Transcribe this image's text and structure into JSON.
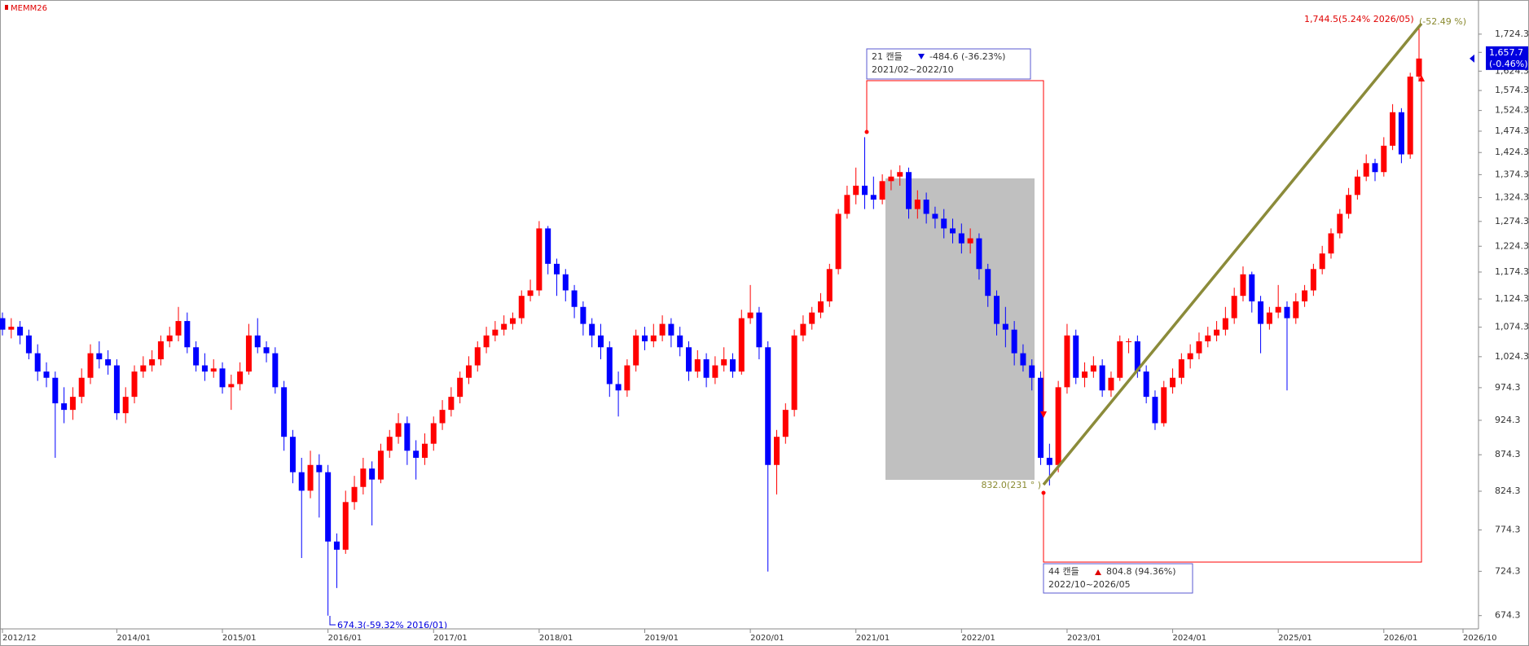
{
  "chart_data": {
    "type": "candlestick",
    "title": "MEMM26",
    "x": [
      "2012/12",
      "2013/01",
      "2013/02",
      "2013/03",
      "2013/04",
      "2013/05",
      "2013/06",
      "2013/07",
      "2013/08",
      "2013/09",
      "2013/10",
      "2013/11",
      "2013/12",
      "2014/01",
      "2014/02",
      "2014/03",
      "2014/04",
      "2014/05",
      "2014/06",
      "2014/07",
      "2014/08",
      "2014/09",
      "2014/10",
      "2014/11",
      "2014/12",
      "2015/01",
      "2015/02",
      "2015/03",
      "2015/04",
      "2015/05",
      "2015/06",
      "2015/07",
      "2015/08",
      "2015/09",
      "2015/10",
      "2015/11",
      "2015/12",
      "2016/01",
      "2016/02",
      "2016/03",
      "2016/04",
      "2016/05",
      "2016/06",
      "2016/07",
      "2016/08",
      "2016/09",
      "2016/10",
      "2016/11",
      "2016/12",
      "2017/01",
      "2017/02",
      "2017/03",
      "2017/04",
      "2017/05",
      "2017/06",
      "2017/07",
      "2017/08",
      "2017/09",
      "2017/10",
      "2017/11",
      "2017/12",
      "2018/01",
      "2018/02",
      "2018/03",
      "2018/04",
      "2018/05",
      "2018/06",
      "2018/07",
      "2018/08",
      "2018/09",
      "2018/10",
      "2018/11",
      "2018/12",
      "2019/01",
      "2019/02",
      "2019/03",
      "2019/04",
      "2019/05",
      "2019/06",
      "2019/07",
      "2019/08",
      "2019/09",
      "2019/10",
      "2019/11",
      "2019/12",
      "2020/01",
      "2020/02",
      "2020/03",
      "2020/04",
      "2020/05",
      "2020/06",
      "2020/07",
      "2020/08",
      "2020/09",
      "2020/10",
      "2020/11",
      "2020/12",
      "2021/01",
      "2021/02",
      "2021/03",
      "2021/04",
      "2021/05",
      "2021/06",
      "2021/07",
      "2021/08",
      "2021/09",
      "2021/10",
      "2021/11",
      "2021/12",
      "2022/01",
      "2022/02",
      "2022/03",
      "2022/04",
      "2022/05",
      "2022/06",
      "2022/07",
      "2022/08",
      "2022/09",
      "2022/10",
      "2022/11",
      "2022/12",
      "2023/01",
      "2023/02",
      "2023/03",
      "2023/04",
      "2023/05",
      "2023/06",
      "2023/07",
      "2023/08",
      "2023/09",
      "2023/10",
      "2023/11",
      "2023/12",
      "2024/01",
      "2024/02",
      "2024/03",
      "2024/04",
      "2024/05",
      "2024/06",
      "2024/07",
      "2024/08",
      "2024/09",
      "2024/10",
      "2024/11",
      "2024/12",
      "2025/01",
      "2025/02",
      "2025/03",
      "2025/04",
      "2025/05",
      "2025/06",
      "2025/07",
      "2025/08",
      "2025/09",
      "2025/10",
      "2025/11",
      "2025/12",
      "2026/01",
      "2026/02",
      "2026/03",
      "2026/04",
      "2026/05"
    ],
    "series": {
      "open": [
        1090,
        1070,
        1075,
        1060,
        1030,
        1000,
        990,
        950,
        940,
        960,
        990,
        1030,
        1020,
        1010,
        935,
        960,
        1000,
        1010,
        1020,
        1050,
        1060,
        1085,
        1040,
        1010,
        1000,
        1005,
        975,
        980,
        1000,
        1060,
        1040,
        1030,
        975,
        900,
        850,
        825,
        860,
        850,
        760,
        750,
        810,
        830,
        855,
        840,
        880,
        900,
        920,
        880,
        870,
        890,
        920,
        940,
        960,
        990,
        1010,
        1040,
        1060,
        1070,
        1080,
        1090,
        1130,
        1140,
        1260,
        1190,
        1170,
        1140,
        1110,
        1080,
        1060,
        1040,
        980,
        970,
        1010,
        1060,
        1050,
        1060,
        1080,
        1060,
        1040,
        1000,
        1020,
        990,
        1010,
        1020,
        1000,
        1090,
        1100,
        1040,
        860,
        900,
        940,
        1060,
        1080,
        1100,
        1120,
        1180,
        1290,
        1330,
        1350,
        1330,
        1320,
        1360,
        1370,
        1380,
        1300,
        1320,
        1290,
        1280,
        1260,
        1250,
        1230,
        1240,
        1180,
        1130,
        1080,
        1070,
        1030,
        1010,
        990,
        870,
        860,
        975,
        1060,
        990,
        1000,
        1010,
        970,
        990,
        1050,
        1050,
        1000,
        960,
        920,
        975,
        990,
        1020,
        1030,
        1050,
        1060,
        1070,
        1090,
        1130,
        1170,
        1120,
        1080,
        1100,
        1110,
        1090,
        1120,
        1140,
        1180,
        1210,
        1250,
        1290,
        1330,
        1370,
        1400,
        1380,
        1440,
        1520,
        1420,
        1610
      ],
      "high": [
        1100,
        1090,
        1085,
        1070,
        1045,
        1015,
        1000,
        975,
        975,
        1005,
        1045,
        1050,
        1035,
        1020,
        975,
        1010,
        1025,
        1035,
        1060,
        1075,
        1110,
        1100,
        1050,
        1030,
        1020,
        1015,
        995,
        1015,
        1080,
        1090,
        1050,
        1040,
        985,
        910,
        870,
        880,
        875,
        860,
        770,
        825,
        845,
        870,
        865,
        890,
        910,
        935,
        930,
        895,
        905,
        930,
        955,
        975,
        1000,
        1025,
        1050,
        1075,
        1085,
        1095,
        1100,
        1140,
        1160,
        1275,
        1265,
        1200,
        1180,
        1150,
        1120,
        1090,
        1080,
        1050,
        1000,
        1020,
        1070,
        1075,
        1080,
        1095,
        1090,
        1075,
        1050,
        1035,
        1030,
        1025,
        1040,
        1030,
        1105,
        1150,
        1110,
        1050,
        910,
        950,
        1070,
        1095,
        1110,
        1135,
        1190,
        1300,
        1350,
        1390,
        1460,
        1370,
        1375,
        1385,
        1395,
        1390,
        1340,
        1335,
        1305,
        1300,
        1280,
        1270,
        1260,
        1250,
        1190,
        1140,
        1110,
        1085,
        1045,
        1020,
        1000,
        890,
        985,
        1080,
        1070,
        1015,
        1025,
        1020,
        1000,
        1060,
        1055,
        1060,
        1010,
        970,
        985,
        1005,
        1030,
        1045,
        1065,
        1075,
        1085,
        1110,
        1145,
        1185,
        1175,
        1130,
        1110,
        1150,
        1120,
        1135,
        1150,
        1190,
        1225,
        1260,
        1300,
        1345,
        1385,
        1420,
        1410,
        1460,
        1540,
        1530,
        1620,
        1744.5
      ],
      "low": [
        1060,
        1055,
        1045,
        1020,
        985,
        975,
        870,
        920,
        925,
        950,
        980,
        1005,
        995,
        925,
        920,
        950,
        990,
        1000,
        1010,
        1040,
        1050,
        1030,
        1000,
        985,
        990,
        965,
        940,
        970,
        995,
        1030,
        1015,
        965,
        880,
        835,
        740,
        815,
        790,
        674.3,
        705,
        745,
        800,
        820,
        780,
        835,
        870,
        890,
        860,
        840,
        860,
        880,
        910,
        930,
        950,
        980,
        1000,
        1030,
        1050,
        1060,
        1070,
        1080,
        1120,
        1130,
        1170,
        1130,
        1120,
        1090,
        1060,
        1040,
        1020,
        960,
        930,
        960,
        1000,
        1035,
        1040,
        1050,
        1040,
        1025,
        985,
        990,
        975,
        980,
        1000,
        990,
        995,
        1080,
        1020,
        724,
        820,
        890,
        930,
        1050,
        1070,
        1090,
        1110,
        1170,
        1280,
        1310,
        1300,
        1300,
        1310,
        1340,
        1350,
        1280,
        1280,
        1270,
        1260,
        1240,
        1230,
        1210,
        1210,
        1160,
        1110,
        1060,
        1040,
        1010,
        1000,
        970,
        860,
        832,
        850,
        965,
        980,
        975,
        990,
        960,
        960,
        985,
        1030,
        990,
        950,
        910,
        915,
        965,
        980,
        1005,
        1020,
        1040,
        1050,
        1060,
        1080,
        1120,
        1100,
        1030,
        1070,
        1090,
        970,
        1080,
        1110,
        1130,
        1170,
        1200,
        1240,
        1280,
        1320,
        1360,
        1360,
        1370,
        1430,
        1400,
        1410,
        1600
      ],
      "close": [
        1070,
        1075,
        1060,
        1030,
        1000,
        990,
        950,
        940,
        960,
        990,
        1030,
        1020,
        1010,
        935,
        960,
        1000,
        1010,
        1020,
        1050,
        1060,
        1085,
        1040,
        1010,
        1000,
        1005,
        975,
        980,
        1000,
        1060,
        1040,
        1030,
        975,
        900,
        850,
        825,
        860,
        850,
        760,
        750,
        810,
        830,
        855,
        840,
        880,
        900,
        920,
        880,
        870,
        890,
        920,
        940,
        960,
        990,
        1010,
        1040,
        1060,
        1070,
        1080,
        1090,
        1130,
        1140,
        1260,
        1190,
        1170,
        1140,
        1110,
        1080,
        1060,
        1040,
        980,
        970,
        1010,
        1060,
        1050,
        1060,
        1080,
        1060,
        1040,
        1000,
        1020,
        990,
        1010,
        1020,
        1000,
        1090,
        1100,
        1040,
        860,
        900,
        940,
        1060,
        1080,
        1100,
        1120,
        1180,
        1290,
        1330,
        1350,
        1330,
        1320,
        1360,
        1370,
        1380,
        1300,
        1320,
        1290,
        1280,
        1260,
        1250,
        1230,
        1240,
        1180,
        1130,
        1080,
        1070,
        1030,
        1010,
        990,
        870,
        860,
        975,
        1060,
        990,
        1000,
        1010,
        970,
        990,
        1050,
        1050,
        1000,
        960,
        920,
        975,
        990,
        1020,
        1030,
        1050,
        1060,
        1070,
        1090,
        1130,
        1170,
        1120,
        1080,
        1100,
        1110,
        1090,
        1120,
        1140,
        1180,
        1210,
        1250,
        1290,
        1330,
        1370,
        1400,
        1380,
        1440,
        1520,
        1420,
        1610,
        1657.7
      ]
    },
    "up_color": "#ff0000",
    "down_color": "#0000ff",
    "log_scale": true,
    "ylim": [
      660,
      1822
    ],
    "yticks": [
      674.3,
      724.3,
      774.3,
      824.3,
      874.3,
      924.3,
      974.3,
      {
        "value": 1024.3,
        "label": "1,024.3"
      },
      {
        "value": 1074.3,
        "label": "1,074.3"
      },
      {
        "value": 1124.3,
        "label": "1,124.3"
      },
      {
        "value": 1174.3,
        "label": "1,174.3"
      },
      {
        "value": 1224.3,
        "label": "1,224.3"
      },
      {
        "value": 1274.3,
        "label": "1,274.3"
      },
      {
        "value": 1324.3,
        "label": "1,324.3"
      },
      {
        "value": 1374.3,
        "label": "1,374.3"
      },
      {
        "value": 1424.3,
        "label": "1,424.3"
      },
      {
        "value": 1474.3,
        "label": "1,474.3"
      },
      {
        "value": 1524.3,
        "label": "1,524.3"
      },
      {
        "value": 1574.3,
        "label": "1,574.3"
      },
      {
        "value": 1624.3,
        "label": "1,624.3"
      },
      {
        "value": 1674.3,
        "label": "1,674.3"
      },
      {
        "value": 1724.3,
        "label": "1,724.3"
      }
    ],
    "xlim": [
      "2012/12",
      "2026/10"
    ],
    "xticks": [
      "2012/12",
      "2014/01",
      "2015/01",
      "2016/01",
      "2017/01",
      "2018/01",
      "2019/01",
      "2020/01",
      "2021/01",
      "2022/01",
      "2023/01",
      "2024/01",
      "2025/01",
      "2026/01",
      "2026/10"
    ],
    "last_price": {
      "value": 1657.7,
      "label": "1,657.7",
      "change": "(-0.46%)"
    },
    "annotations": {
      "drop_count": "21 캔들",
      "drop_change": "-484.6 (-36.23%)",
      "drop_period": "2021/02~2022/10",
      "rise_count": "44 캔들",
      "rise_change": "804.8 (94.36%)",
      "rise_period": "2022/10~2026/05",
      "low_label": "674.3(-59.32% 2016/01)",
      "trough_label": "832.0(231 ° )",
      "high_label": "1,744.5(5.24% 2026/05)",
      "angle_label": "(-52.49 %)"
    }
  }
}
